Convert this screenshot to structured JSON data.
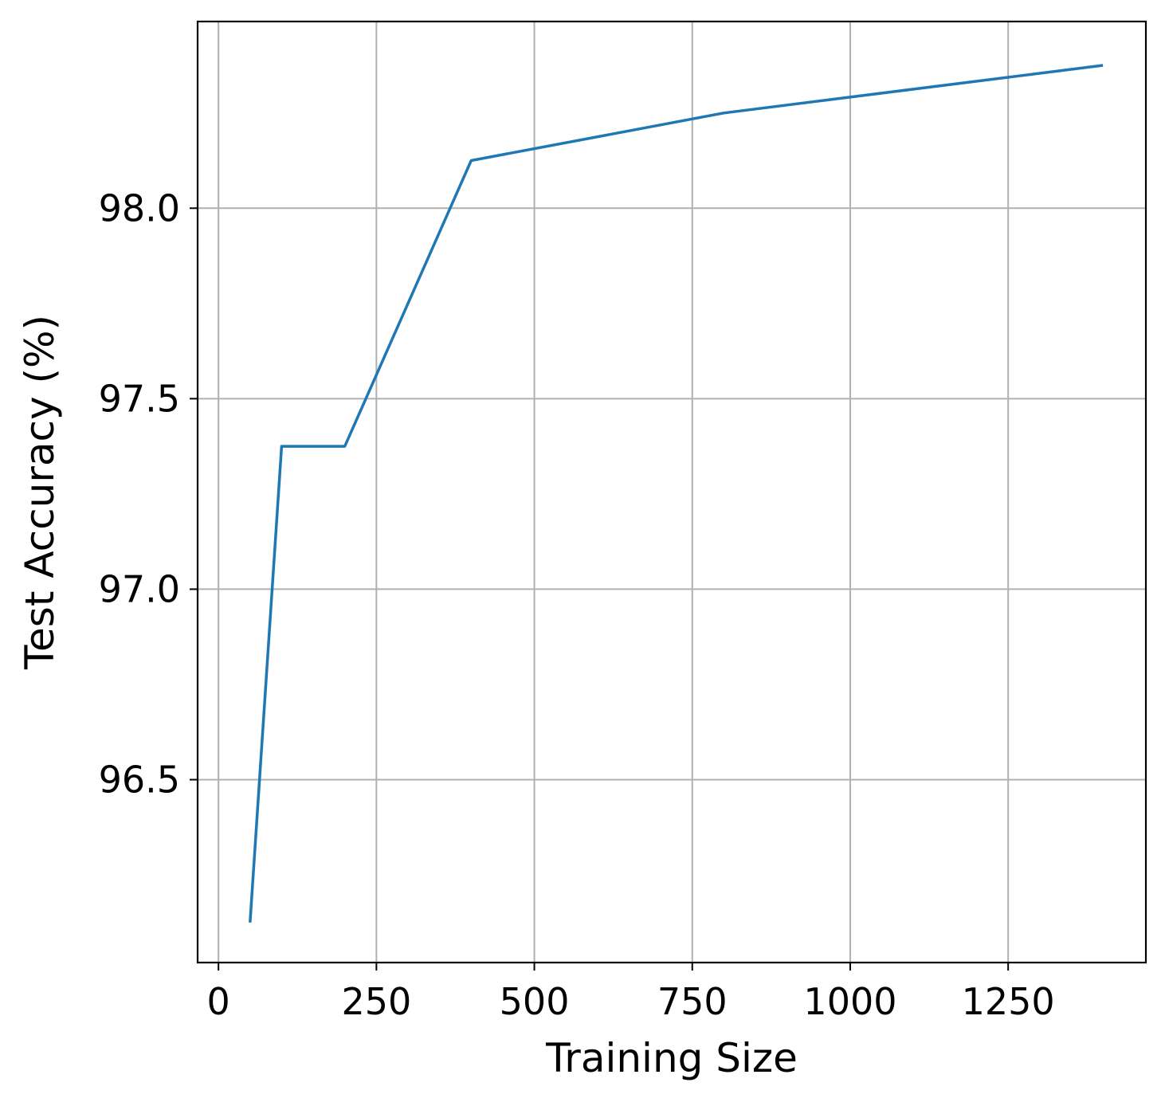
{
  "chart_data": {
    "type": "line",
    "title": "",
    "xlabel": "Training Size",
    "ylabel": "Test Accuracy (%)",
    "xlim": [
      -33,
      1468
    ],
    "ylim": [
      96.02,
      98.49
    ],
    "xticks": [
      0,
      250,
      500,
      750,
      1000,
      1250
    ],
    "xtick_labels": [
      "0",
      "250",
      "500",
      "750",
      "1000",
      "1250"
    ],
    "yticks": [
      96.5,
      97.0,
      97.5,
      98.0
    ],
    "ytick_labels": [
      "96.5",
      "97.0",
      "97.5",
      "98.0"
    ],
    "grid": true,
    "legend": false,
    "series": [
      {
        "color": "#1f77b4",
        "x": [
          50,
          100,
          200,
          400,
          800,
          1400
        ],
        "y": [
          96.125,
          97.375,
          97.375,
          98.125,
          98.25,
          98.375
        ]
      }
    ]
  }
}
